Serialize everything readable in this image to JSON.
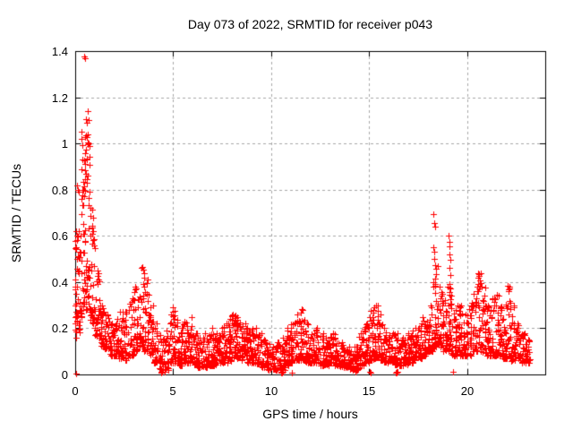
{
  "chart_data": {
    "type": "scatter",
    "title": "Day 073 of 2022, SRMTID for receiver p043",
    "xlabel": "GPS time / hours",
    "ylabel": "SRMTID / TECUs",
    "xlim": [
      0,
      24
    ],
    "ylim": [
      0,
      1.4
    ],
    "xticks": [
      0,
      5,
      10,
      15,
      20
    ],
    "yticks": [
      0,
      0.2,
      0.4,
      0.6,
      0.8,
      1,
      1.2,
      1.4
    ],
    "grid": true,
    "legend": "none",
    "marker": "plus",
    "marker_color": "#ff0000",
    "series_name": "SRMTID",
    "x_data_end": 23.2,
    "bin_width": 0.25,
    "envelope_bins": [
      [
        0.0,
        0.18,
        0.62,
        34
      ],
      [
        0.25,
        0.25,
        1.05,
        40
      ],
      [
        0.5,
        0.28,
        1.1,
        40
      ],
      [
        0.75,
        0.22,
        0.72,
        36
      ],
      [
        1.0,
        0.16,
        0.45,
        30
      ],
      [
        1.25,
        0.12,
        0.3,
        28
      ],
      [
        1.5,
        0.1,
        0.26,
        28
      ],
      [
        1.75,
        0.08,
        0.22,
        28
      ],
      [
        2.0,
        0.08,
        0.24,
        28
      ],
      [
        2.25,
        0.07,
        0.27,
        28
      ],
      [
        2.5,
        0.06,
        0.28,
        26
      ],
      [
        2.75,
        0.08,
        0.33,
        26
      ],
      [
        3.0,
        0.1,
        0.38,
        28
      ],
      [
        3.25,
        0.12,
        0.46,
        30
      ],
      [
        3.5,
        0.1,
        0.42,
        30
      ],
      [
        3.75,
        0.08,
        0.3,
        26
      ],
      [
        4.0,
        0.05,
        0.22,
        26
      ],
      [
        4.25,
        0.02,
        0.17,
        24
      ],
      [
        4.5,
        0.02,
        0.19,
        24
      ],
      [
        4.75,
        0.05,
        0.27,
        26
      ],
      [
        5.0,
        0.05,
        0.29,
        28
      ],
      [
        5.25,
        0.04,
        0.2,
        26
      ],
      [
        5.5,
        0.05,
        0.23,
        28
      ],
      [
        5.75,
        0.05,
        0.25,
        28
      ],
      [
        6.0,
        0.04,
        0.18,
        28
      ],
      [
        6.25,
        0.03,
        0.16,
        26
      ],
      [
        6.5,
        0.03,
        0.18,
        26
      ],
      [
        6.75,
        0.04,
        0.2,
        28
      ],
      [
        7.0,
        0.04,
        0.18,
        28
      ],
      [
        7.25,
        0.05,
        0.2,
        28
      ],
      [
        7.5,
        0.05,
        0.22,
        28
      ],
      [
        7.75,
        0.06,
        0.24,
        30
      ],
      [
        8.0,
        0.07,
        0.26,
        30
      ],
      [
        8.25,
        0.07,
        0.25,
        30
      ],
      [
        8.5,
        0.06,
        0.22,
        28
      ],
      [
        8.75,
        0.05,
        0.2,
        28
      ],
      [
        9.0,
        0.05,
        0.2,
        28
      ],
      [
        9.25,
        0.04,
        0.18,
        26
      ],
      [
        9.5,
        0.03,
        0.15,
        26
      ],
      [
        9.75,
        0.02,
        0.13,
        24
      ],
      [
        10.0,
        0.02,
        0.12,
        24
      ],
      [
        10.25,
        0.02,
        0.14,
        24
      ],
      [
        10.5,
        0.02,
        0.16,
        24
      ],
      [
        10.75,
        0.04,
        0.2,
        26
      ],
      [
        11.0,
        0.05,
        0.22,
        28
      ],
      [
        11.25,
        0.06,
        0.26,
        30
      ],
      [
        11.5,
        0.06,
        0.28,
        30
      ],
      [
        11.75,
        0.05,
        0.22,
        28
      ],
      [
        12.0,
        0.05,
        0.18,
        26
      ],
      [
        12.25,
        0.05,
        0.2,
        26
      ],
      [
        12.5,
        0.04,
        0.18,
        26
      ],
      [
        12.75,
        0.04,
        0.16,
        26
      ],
      [
        13.0,
        0.05,
        0.18,
        26
      ],
      [
        13.25,
        0.04,
        0.16,
        26
      ],
      [
        13.5,
        0.03,
        0.14,
        24
      ],
      [
        13.75,
        0.03,
        0.12,
        24
      ],
      [
        14.0,
        0.02,
        0.1,
        24
      ],
      [
        14.25,
        0.02,
        0.12,
        24
      ],
      [
        14.5,
        0.04,
        0.18,
        26
      ],
      [
        14.75,
        0.05,
        0.22,
        28
      ],
      [
        15.0,
        0.06,
        0.28,
        30
      ],
      [
        15.25,
        0.07,
        0.3,
        30
      ],
      [
        15.5,
        0.06,
        0.26,
        28
      ],
      [
        15.75,
        0.05,
        0.2,
        26
      ],
      [
        16.0,
        0.05,
        0.18,
        26
      ],
      [
        16.25,
        0.04,
        0.18,
        26
      ],
      [
        16.5,
        0.04,
        0.16,
        26
      ],
      [
        16.75,
        0.04,
        0.15,
        26
      ],
      [
        17.0,
        0.05,
        0.18,
        26
      ],
      [
        17.25,
        0.06,
        0.2,
        28
      ],
      [
        17.5,
        0.07,
        0.22,
        28
      ],
      [
        17.75,
        0.08,
        0.25,
        30
      ],
      [
        18.0,
        0.1,
        0.3,
        32
      ],
      [
        18.25,
        0.12,
        0.47,
        34
      ],
      [
        18.5,
        0.12,
        0.38,
        32
      ],
      [
        18.75,
        0.1,
        0.32,
        30
      ],
      [
        19.0,
        0.1,
        0.38,
        30
      ],
      [
        19.25,
        0.08,
        0.28,
        28
      ],
      [
        19.5,
        0.08,
        0.3,
        28
      ],
      [
        19.75,
        0.08,
        0.26,
        28
      ],
      [
        20.0,
        0.08,
        0.3,
        28
      ],
      [
        20.25,
        0.1,
        0.35,
        30
      ],
      [
        20.5,
        0.1,
        0.44,
        32
      ],
      [
        20.75,
        0.09,
        0.38,
        30
      ],
      [
        21.0,
        0.08,
        0.3,
        28
      ],
      [
        21.25,
        0.08,
        0.33,
        28
      ],
      [
        21.5,
        0.08,
        0.34,
        28
      ],
      [
        21.75,
        0.07,
        0.28,
        28
      ],
      [
        22.0,
        0.07,
        0.38,
        30
      ],
      [
        22.25,
        0.06,
        0.3,
        28
      ],
      [
        22.5,
        0.06,
        0.22,
        26
      ],
      [
        22.75,
        0.05,
        0.18,
        26
      ],
      [
        23.0,
        0.05,
        0.15,
        20
      ]
    ],
    "outlier_points": [
      [
        0.47,
        1.375
      ],
      [
        0.52,
        1.37
      ],
      [
        0.62,
        1.14
      ],
      [
        0.55,
        1.105
      ],
      [
        0.6,
        1.09
      ],
      [
        0.65,
        1.04
      ],
      [
        0.62,
        1.005
      ],
      [
        0.68,
        1.0
      ],
      [
        0.71,
        0.99
      ],
      [
        0.57,
        0.975
      ],
      [
        0.6,
        0.93
      ],
      [
        0.48,
        0.885
      ],
      [
        0.55,
        0.87
      ],
      [
        0.62,
        0.862
      ],
      [
        0.52,
        0.845
      ],
      [
        0.58,
        0.83
      ],
      [
        0.45,
        0.815
      ],
      [
        0.4,
        0.8
      ],
      [
        0.07,
        0.82
      ],
      [
        0.12,
        0.8
      ],
      [
        0.18,
        0.79
      ],
      [
        0.35,
        0.775
      ],
      [
        0.3,
        0.76
      ],
      [
        0.05,
        0.62
      ],
      [
        0.08,
        0.6
      ],
      [
        0.1,
        0.58
      ],
      [
        0.03,
        0.55
      ],
      [
        0.02,
        0.41
      ],
      [
        0.02,
        0.38
      ],
      [
        0.03,
        0.35
      ],
      [
        0.02,
        0.3
      ],
      [
        0.03,
        0.27
      ],
      [
        0.02,
        0.22
      ],
      [
        0.03,
        0.16
      ],
      [
        3.42,
        0.465
      ],
      [
        3.47,
        0.452
      ],
      [
        3.52,
        0.44
      ],
      [
        18.3,
        0.695
      ],
      [
        18.33,
        0.655
      ],
      [
        18.36,
        0.638
      ],
      [
        18.28,
        0.552
      ],
      [
        18.32,
        0.532
      ],
      [
        18.35,
        0.5
      ],
      [
        18.38,
        0.475
      ],
      [
        18.42,
        0.458
      ],
      [
        19.08,
        0.6
      ],
      [
        19.11,
        0.575
      ],
      [
        19.13,
        0.553
      ],
      [
        19.1,
        0.52
      ],
      [
        19.14,
        0.495
      ],
      [
        19.09,
        0.462
      ],
      [
        19.16,
        0.432
      ],
      [
        19.12,
        0.39
      ],
      [
        20.58,
        0.44
      ],
      [
        20.61,
        0.425
      ],
      [
        20.64,
        0.408
      ],
      [
        20.55,
        0.39
      ],
      [
        22.08,
        0.382
      ],
      [
        22.12,
        0.36
      ],
      [
        21.55,
        0.345
      ],
      [
        21.3,
        0.33
      ],
      [
        15.35,
        0.3
      ],
      [
        11.55,
        0.285
      ],
      [
        0.05,
        0.005
      ],
      [
        4.38,
        0.008
      ],
      [
        4.39,
        0.012
      ],
      [
        4.41,
        0.006
      ],
      [
        4.42,
        0.01
      ],
      [
        4.45,
        0.01
      ],
      [
        4.55,
        0.012
      ],
      [
        10.52,
        0.01
      ],
      [
        10.53,
        0.006
      ],
      [
        10.55,
        0.012
      ],
      [
        10.56,
        0.006
      ],
      [
        10.6,
        0.012
      ],
      [
        11.05,
        0.006
      ],
      [
        14.3,
        0.01
      ],
      [
        15.04,
        0.01
      ],
      [
        15.07,
        0.006
      ],
      [
        16.38,
        0.008
      ],
      [
        16.39,
        0.012
      ],
      [
        16.42,
        0.006
      ],
      [
        16.45,
        0.012
      ],
      [
        19.3,
        0.01
      ]
    ]
  },
  "style": {
    "background": "#ffffff",
    "border_color": "#000000",
    "grid_color": "#a8a8a8",
    "text_color": "#000000",
    "marker_color": "#ff0000"
  }
}
